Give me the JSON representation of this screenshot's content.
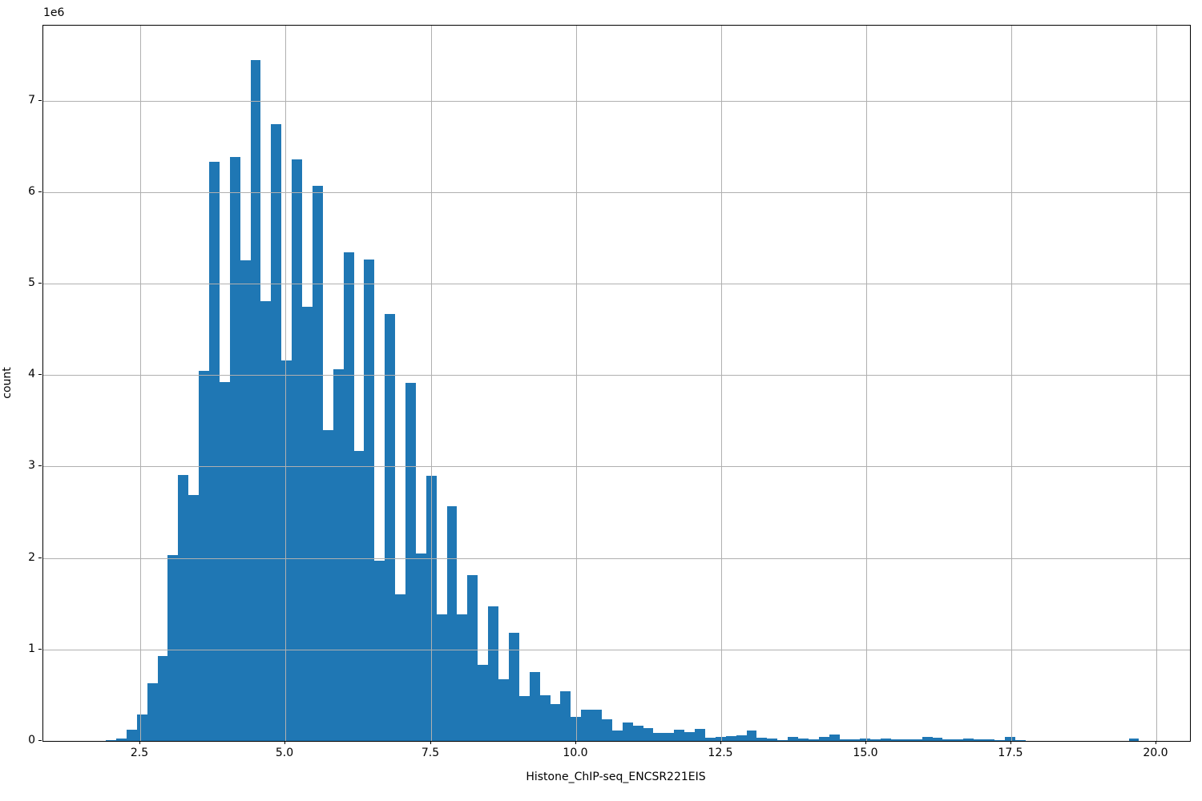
{
  "figure": {
    "background": "#ffffff",
    "spine_color": "#000000"
  },
  "chart_data": {
    "type": "bar",
    "subtype": "histogram",
    "title": "",
    "xlabel": "Histone_ChIP-seq_ENCSR221EIS",
    "ylabel": "count",
    "y_offset_label": "1e6",
    "xlim": [
      0.825,
      20.58
    ],
    "ylim": [
      0,
      7820000
    ],
    "x_ticks": [
      2.5,
      5.0,
      7.5,
      10.0,
      12.5,
      15.0,
      17.5,
      20.0
    ],
    "x_tick_labels": [
      "2.5",
      "5.0",
      "7.5",
      "10.0",
      "12.5",
      "15.0",
      "17.5",
      "20.0"
    ],
    "y_ticks": [
      0,
      1000000,
      2000000,
      3000000,
      4000000,
      5000000,
      6000000,
      7000000
    ],
    "y_tick_labels": [
      "0",
      "1",
      "2",
      "3",
      "4",
      "5",
      "6",
      "7"
    ],
    "grid": true,
    "grid_over_bars": true,
    "legend": null,
    "bar_color": "#1f77b4",
    "grid_color": "#b0b0b0",
    "histogram": {
      "bin_start": 1.903,
      "bin_width": 0.178,
      "counts": [
        13000,
        30000,
        125000,
        290000,
        630000,
        930000,
        2030000,
        2910000,
        2685000,
        4050000,
        6330000,
        3920000,
        6380000,
        5250000,
        7440000,
        4810000,
        6740000,
        4160000,
        6360000,
        4750000,
        6070000,
        3400000,
        4060000,
        5340000,
        3170000,
        5260000,
        1970000,
        4670000,
        1600000,
        3910000,
        2050000,
        2900000,
        1380000,
        2570000,
        1380000,
        1810000,
        830000,
        1470000,
        670000,
        1180000,
        490000,
        750000,
        500000,
        400000,
        545000,
        260000,
        345000,
        345000,
        240000,
        110000,
        200000,
        170000,
        140000,
        90000,
        90000,
        120000,
        95000,
        130000,
        35000,
        45000,
        50000,
        60000,
        115000,
        35000,
        25000,
        10000,
        40000,
        30000,
        15000,
        45000,
        70000,
        20000,
        15000,
        30000,
        20000,
        30000,
        15000,
        15000,
        15000,
        45000,
        35000,
        20000,
        15000,
        30000,
        20000,
        15000,
        12000,
        45000,
        10000,
        0,
        0,
        0,
        0,
        0,
        0,
        0,
        0,
        0,
        0,
        30000
      ]
    }
  }
}
